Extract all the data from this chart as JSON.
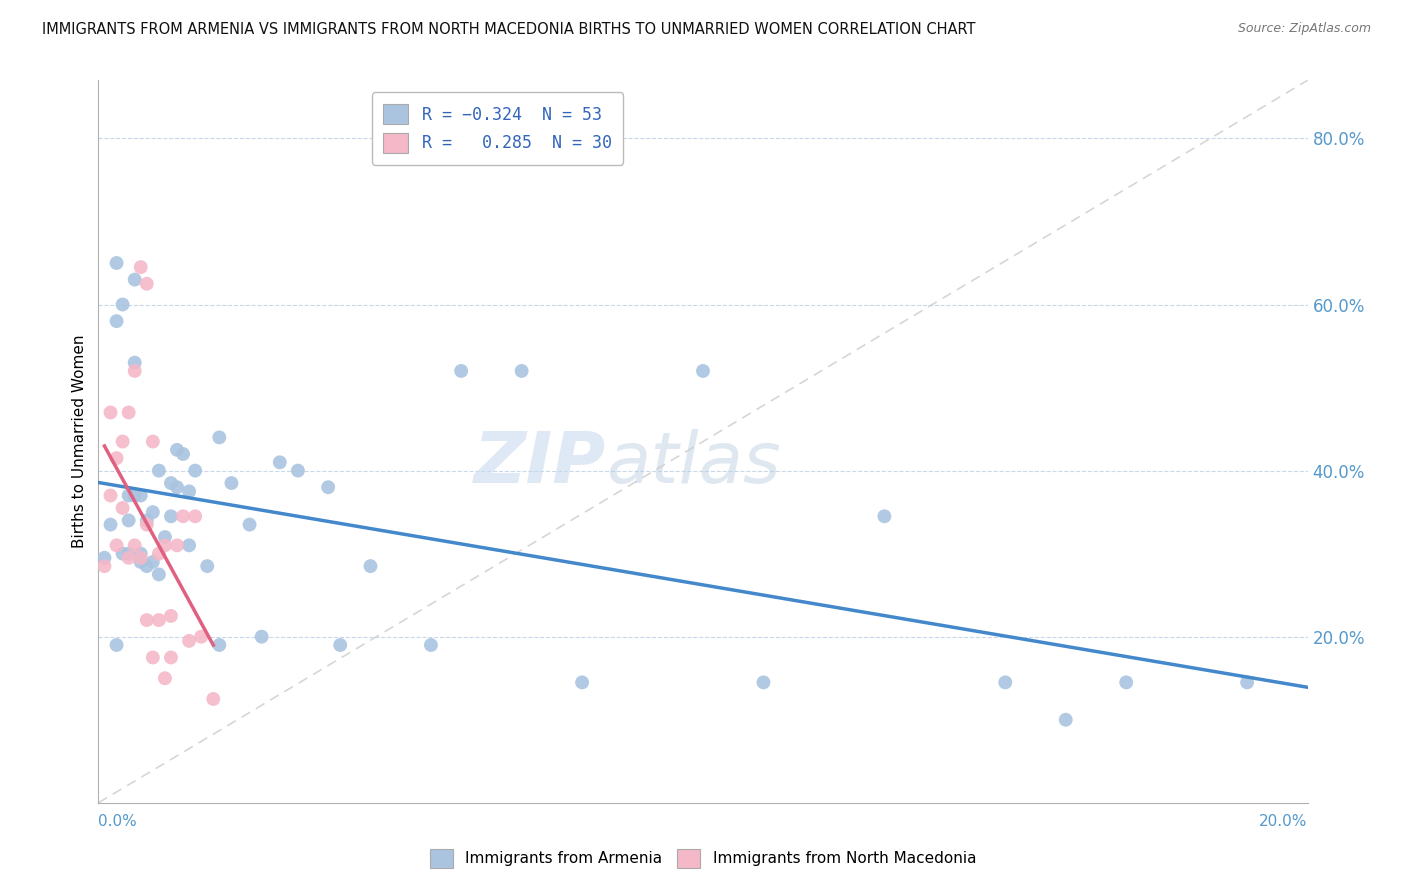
{
  "title": "IMMIGRANTS FROM ARMENIA VS IMMIGRANTS FROM NORTH MACEDONIA BIRTHS TO UNMARRIED WOMEN CORRELATION CHART",
  "source": "Source: ZipAtlas.com",
  "ylabel": "Births to Unmarried Women",
  "xlim": [
    0.0,
    0.2
  ],
  "ylim": [
    0.0,
    0.87
  ],
  "ytick_vals": [
    0.2,
    0.4,
    0.6,
    0.8
  ],
  "ytick_labels": [
    "20.0%",
    "40.0%",
    "60.0%",
    "80.0%"
  ],
  "r_armenia": -0.324,
  "n_armenia": 53,
  "r_macedonia": 0.285,
  "n_macedonia": 30,
  "color_armenia": "#aac4e0",
  "color_macedonia": "#f4b8c8",
  "line_color_armenia": "#4488cc",
  "line_color_macedonia": "#e06080",
  "background_color": "#ffffff",
  "armenia_x": [
    0.001,
    0.002,
    0.003,
    0.003,
    0.004,
    0.005,
    0.005,
    0.006,
    0.006,
    0.007,
    0.007,
    0.008,
    0.008,
    0.009,
    0.009,
    0.01,
    0.01,
    0.011,
    0.012,
    0.013,
    0.013,
    0.014,
    0.015,
    0.015,
    0.016,
    0.018,
    0.02,
    0.022,
    0.025,
    0.027,
    0.03,
    0.033,
    0.038,
    0.04,
    0.045,
    0.055,
    0.06,
    0.07,
    0.08,
    0.1,
    0.11,
    0.13,
    0.15,
    0.16,
    0.17,
    0.19,
    0.003,
    0.004,
    0.005,
    0.006,
    0.007,
    0.012,
    0.02
  ],
  "armenia_y": [
    0.295,
    0.335,
    0.58,
    0.65,
    0.6,
    0.3,
    0.37,
    0.53,
    0.63,
    0.29,
    0.37,
    0.285,
    0.34,
    0.29,
    0.35,
    0.275,
    0.4,
    0.32,
    0.385,
    0.38,
    0.425,
    0.42,
    0.31,
    0.375,
    0.4,
    0.285,
    0.44,
    0.385,
    0.335,
    0.2,
    0.41,
    0.4,
    0.38,
    0.19,
    0.285,
    0.19,
    0.52,
    0.52,
    0.145,
    0.52,
    0.145,
    0.345,
    0.145,
    0.1,
    0.145,
    0.145,
    0.19,
    0.3,
    0.34,
    0.37,
    0.3,
    0.345,
    0.19
  ],
  "macedonia_x": [
    0.001,
    0.002,
    0.002,
    0.003,
    0.003,
    0.004,
    0.004,
    0.005,
    0.005,
    0.006,
    0.006,
    0.007,
    0.007,
    0.008,
    0.008,
    0.009,
    0.01,
    0.011,
    0.012,
    0.013,
    0.015,
    0.017,
    0.019,
    0.008,
    0.009,
    0.01,
    0.011,
    0.012,
    0.014,
    0.016
  ],
  "macedonia_y": [
    0.285,
    0.37,
    0.47,
    0.31,
    0.415,
    0.355,
    0.435,
    0.295,
    0.47,
    0.31,
    0.52,
    0.645,
    0.295,
    0.335,
    0.625,
    0.435,
    0.3,
    0.31,
    0.225,
    0.31,
    0.195,
    0.2,
    0.125,
    0.22,
    0.175,
    0.22,
    0.15,
    0.175,
    0.345,
    0.345
  ]
}
